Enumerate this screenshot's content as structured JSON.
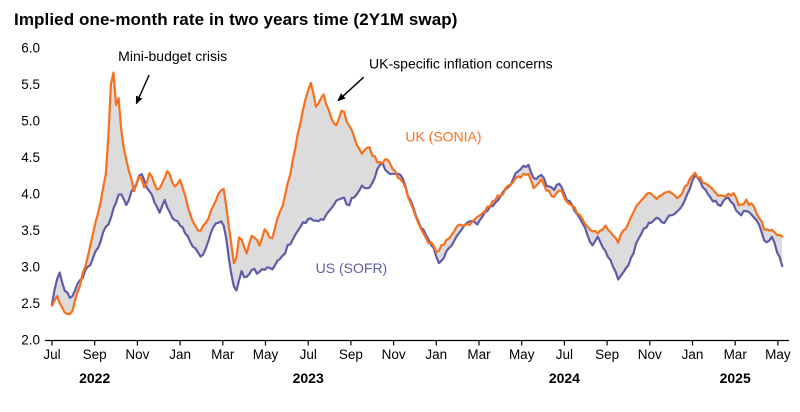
{
  "chart_data": {
    "type": "line",
    "title": "Implied one-month rate in two years time (2Y1M swap)",
    "x_unit": "months since Jul 2022",
    "ylim": [
      2.0,
      6.0
    ],
    "y_ticks": [
      2.0,
      2.5,
      3.0,
      3.5,
      4.0,
      4.5,
      5.0,
      5.5,
      6.0
    ],
    "x_ticks": [
      {
        "t": 0,
        "label": "Jul"
      },
      {
        "t": 2,
        "label": "Sep"
      },
      {
        "t": 4,
        "label": "Nov"
      },
      {
        "t": 6,
        "label": "Jan"
      },
      {
        "t": 8,
        "label": "Mar"
      },
      {
        "t": 10,
        "label": "May"
      },
      {
        "t": 12,
        "label": "Jul"
      },
      {
        "t": 14,
        "label": "Sep"
      },
      {
        "t": 16,
        "label": "Nov"
      },
      {
        "t": 18,
        "label": "Jan"
      },
      {
        "t": 20,
        "label": "Mar"
      },
      {
        "t": 22,
        "label": "May"
      },
      {
        "t": 24,
        "label": "Jul"
      },
      {
        "t": 26,
        "label": "Sep"
      },
      {
        "t": 28,
        "label": "Nov"
      },
      {
        "t": 30,
        "label": "Jan"
      },
      {
        "t": 32,
        "label": "Mar"
      },
      {
        "t": 34,
        "label": "May"
      }
    ],
    "year_labels": [
      {
        "t": 2,
        "label": "2022"
      },
      {
        "t": 12,
        "label": "2023"
      },
      {
        "t": 24,
        "label": "2024"
      },
      {
        "t": 32,
        "label": "2025"
      }
    ],
    "grid": false,
    "legend_position": "inline-labels",
    "fill_between_color": "#DCDCDC",
    "axis_color": "#000000",
    "series": [
      {
        "name": "UK (SONIA)",
        "color": "#F8701D",
        "label_t": 16.55,
        "label_v": 4.72,
        "points": [
          [
            0,
            2.45
          ],
          [
            0.25,
            2.6
          ],
          [
            0.55,
            2.42
          ],
          [
            0.85,
            2.33
          ],
          [
            1.15,
            2.6
          ],
          [
            1.5,
            2.95
          ],
          [
            1.8,
            3.3
          ],
          [
            2.05,
            3.6
          ],
          [
            2.3,
            3.95
          ],
          [
            2.55,
            4.3
          ],
          [
            2.75,
            5.45
          ],
          [
            2.85,
            5.78
          ],
          [
            3.0,
            5.2
          ],
          [
            3.1,
            5.35
          ],
          [
            3.25,
            4.85
          ],
          [
            3.45,
            4.5
          ],
          [
            3.65,
            4.25
          ],
          [
            3.85,
            4.05
          ],
          [
            4.1,
            4.25
          ],
          [
            4.35,
            4.1
          ],
          [
            4.6,
            4.3
          ],
          [
            4.9,
            4.05
          ],
          [
            5.2,
            4.15
          ],
          [
            5.45,
            4.35
          ],
          [
            5.7,
            4.1
          ],
          [
            6.0,
            4.2
          ],
          [
            6.3,
            3.9
          ],
          [
            6.6,
            3.6
          ],
          [
            6.9,
            3.45
          ],
          [
            7.2,
            3.6
          ],
          [
            7.5,
            3.8
          ],
          [
            7.8,
            4.0
          ],
          [
            8.05,
            4.1
          ],
          [
            8.3,
            3.5
          ],
          [
            8.55,
            3.0
          ],
          [
            8.8,
            3.45
          ],
          [
            9.1,
            3.2
          ],
          [
            9.4,
            3.45
          ],
          [
            9.7,
            3.3
          ],
          [
            10.0,
            3.55
          ],
          [
            10.3,
            3.35
          ],
          [
            10.6,
            3.7
          ],
          [
            10.9,
            3.95
          ],
          [
            11.2,
            4.35
          ],
          [
            11.5,
            4.8
          ],
          [
            11.8,
            5.2
          ],
          [
            12.1,
            5.55
          ],
          [
            12.4,
            5.15
          ],
          [
            12.7,
            5.4
          ],
          [
            13.0,
            5.1
          ],
          [
            13.3,
            4.9
          ],
          [
            13.6,
            5.15
          ],
          [
            13.9,
            4.95
          ],
          [
            14.2,
            4.75
          ],
          [
            14.5,
            4.55
          ],
          [
            14.8,
            4.65
          ],
          [
            15.1,
            4.5
          ],
          [
            15.4,
            4.4
          ],
          [
            15.7,
            4.5
          ],
          [
            16.0,
            4.35
          ],
          [
            16.3,
            4.2
          ],
          [
            16.6,
            4.05
          ],
          [
            16.9,
            3.8
          ],
          [
            17.2,
            3.6
          ],
          [
            17.5,
            3.4
          ],
          [
            17.8,
            3.3
          ],
          [
            18.1,
            3.2
          ],
          [
            18.4,
            3.35
          ],
          [
            18.7,
            3.45
          ],
          [
            19.0,
            3.55
          ],
          [
            19.3,
            3.6
          ],
          [
            19.6,
            3.55
          ],
          [
            19.9,
            3.7
          ],
          [
            20.2,
            3.75
          ],
          [
            20.5,
            3.85
          ],
          [
            20.8,
            3.95
          ],
          [
            21.1,
            4.0
          ],
          [
            21.4,
            4.1
          ],
          [
            21.7,
            4.2
          ],
          [
            22.0,
            4.25
          ],
          [
            22.3,
            4.3
          ],
          [
            22.6,
            4.05
          ],
          [
            22.9,
            4.2
          ],
          [
            23.2,
            4.05
          ],
          [
            23.5,
            3.95
          ],
          [
            23.8,
            4.05
          ],
          [
            24.1,
            3.9
          ],
          [
            24.4,
            3.85
          ],
          [
            24.7,
            3.7
          ],
          [
            25.0,
            3.6
          ],
          [
            25.3,
            3.5
          ],
          [
            25.6,
            3.45
          ],
          [
            25.9,
            3.55
          ],
          [
            26.2,
            3.45
          ],
          [
            26.5,
            3.35
          ],
          [
            26.8,
            3.5
          ],
          [
            27.1,
            3.65
          ],
          [
            27.4,
            3.85
          ],
          [
            27.7,
            3.95
          ],
          [
            28.0,
            4.05
          ],
          [
            28.3,
            3.9
          ],
          [
            28.6,
            4.0
          ],
          [
            28.9,
            4.05
          ],
          [
            29.2,
            3.95
          ],
          [
            29.5,
            4.0
          ],
          [
            29.8,
            4.15
          ],
          [
            30.1,
            4.3
          ],
          [
            30.4,
            4.2
          ],
          [
            30.7,
            4.1
          ],
          [
            31.0,
            4.05
          ],
          [
            31.3,
            3.95
          ],
          [
            31.6,
            4.0
          ],
          [
            31.9,
            4.0
          ],
          [
            32.2,
            3.85
          ],
          [
            32.5,
            3.9
          ],
          [
            32.8,
            3.85
          ],
          [
            33.1,
            3.7
          ],
          [
            33.4,
            3.5
          ],
          [
            33.7,
            3.5
          ],
          [
            34.0,
            3.45
          ],
          [
            34.2,
            3.4
          ]
        ]
      },
      {
        "name": "US (SOFR)",
        "color": "#605CA8",
        "label_t": 12.35,
        "label_v": 2.92,
        "points": [
          [
            0,
            2.5
          ],
          [
            0.3,
            2.95
          ],
          [
            0.6,
            2.7
          ],
          [
            0.9,
            2.55
          ],
          [
            1.2,
            2.75
          ],
          [
            1.5,
            2.9
          ],
          [
            1.8,
            3.05
          ],
          [
            2.1,
            3.25
          ],
          [
            2.4,
            3.45
          ],
          [
            2.7,
            3.65
          ],
          [
            3.0,
            3.9
          ],
          [
            3.2,
            4.05
          ],
          [
            3.45,
            3.85
          ],
          [
            3.7,
            4.0
          ],
          [
            3.95,
            4.15
          ],
          [
            4.2,
            4.3
          ],
          [
            4.45,
            4.1
          ],
          [
            4.7,
            3.95
          ],
          [
            5.0,
            3.75
          ],
          [
            5.3,
            3.9
          ],
          [
            5.6,
            3.7
          ],
          [
            5.9,
            3.6
          ],
          [
            6.2,
            3.5
          ],
          [
            6.5,
            3.35
          ],
          [
            6.8,
            3.2
          ],
          [
            7.0,
            3.1
          ],
          [
            7.3,
            3.35
          ],
          [
            7.6,
            3.6
          ],
          [
            7.9,
            3.65
          ],
          [
            8.1,
            3.5
          ],
          [
            8.35,
            2.95
          ],
          [
            8.6,
            2.65
          ],
          [
            8.85,
            2.95
          ],
          [
            9.1,
            2.85
          ],
          [
            9.4,
            3.0
          ],
          [
            9.7,
            2.9
          ],
          [
            10.0,
            3.0
          ],
          [
            10.3,
            2.95
          ],
          [
            10.6,
            3.1
          ],
          [
            10.9,
            3.2
          ],
          [
            11.2,
            3.35
          ],
          [
            11.5,
            3.5
          ],
          [
            11.8,
            3.6
          ],
          [
            12.1,
            3.7
          ],
          [
            12.4,
            3.6
          ],
          [
            12.7,
            3.65
          ],
          [
            13.0,
            3.8
          ],
          [
            13.3,
            3.9
          ],
          [
            13.6,
            3.95
          ],
          [
            13.9,
            3.85
          ],
          [
            14.2,
            4.0
          ],
          [
            14.5,
            4.1
          ],
          [
            14.8,
            4.05
          ],
          [
            15.1,
            4.2
          ],
          [
            15.4,
            4.45
          ],
          [
            15.7,
            4.3
          ],
          [
            16.0,
            4.25
          ],
          [
            16.3,
            4.3
          ],
          [
            16.6,
            4.05
          ],
          [
            16.9,
            3.85
          ],
          [
            17.2,
            3.6
          ],
          [
            17.5,
            3.45
          ],
          [
            17.8,
            3.3
          ],
          [
            18.1,
            3.05
          ],
          [
            18.4,
            3.15
          ],
          [
            18.7,
            3.3
          ],
          [
            19.0,
            3.45
          ],
          [
            19.3,
            3.55
          ],
          [
            19.6,
            3.65
          ],
          [
            19.9,
            3.6
          ],
          [
            20.2,
            3.7
          ],
          [
            20.5,
            3.8
          ],
          [
            20.8,
            3.9
          ],
          [
            21.1,
            4.0
          ],
          [
            21.4,
            4.1
          ],
          [
            21.7,
            4.25
          ],
          [
            22.0,
            4.35
          ],
          [
            22.3,
            4.4
          ],
          [
            22.6,
            4.2
          ],
          [
            22.9,
            4.3
          ],
          [
            23.2,
            4.1
          ],
          [
            23.5,
            4.05
          ],
          [
            23.8,
            4.15
          ],
          [
            24.1,
            3.95
          ],
          [
            24.4,
            3.8
          ],
          [
            24.7,
            3.65
          ],
          [
            25.0,
            3.5
          ],
          [
            25.3,
            3.3
          ],
          [
            25.6,
            3.4
          ],
          [
            25.9,
            3.2
          ],
          [
            26.2,
            3.05
          ],
          [
            26.5,
            2.85
          ],
          [
            26.8,
            2.95
          ],
          [
            27.1,
            3.1
          ],
          [
            27.4,
            3.35
          ],
          [
            27.7,
            3.5
          ],
          [
            28.0,
            3.6
          ],
          [
            28.3,
            3.7
          ],
          [
            28.6,
            3.6
          ],
          [
            28.9,
            3.7
          ],
          [
            29.2,
            3.75
          ],
          [
            29.5,
            3.85
          ],
          [
            29.8,
            4.0
          ],
          [
            30.1,
            4.25
          ],
          [
            30.4,
            4.15
          ],
          [
            30.7,
            4.0
          ],
          [
            31.0,
            3.9
          ],
          [
            31.3,
            3.85
          ],
          [
            31.6,
            3.95
          ],
          [
            31.9,
            3.85
          ],
          [
            32.2,
            3.7
          ],
          [
            32.5,
            3.8
          ],
          [
            32.8,
            3.7
          ],
          [
            33.1,
            3.6
          ],
          [
            33.4,
            3.35
          ],
          [
            33.7,
            3.4
          ],
          [
            34.0,
            3.2
          ],
          [
            34.2,
            3.0
          ]
        ]
      }
    ],
    "annotations": [
      {
        "text": "Mini-budget crisis",
        "text_t": 3.1,
        "text_v": 5.82,
        "arrow_from_t": 4.55,
        "arrow_from_v": 5.63,
        "arrow_to_t": 3.95,
        "arrow_to_v": 5.24
      },
      {
        "text": "UK-specific inflation concerns",
        "text_t": 14.85,
        "text_v": 5.72,
        "arrow_from_t": 14.6,
        "arrow_from_v": 5.6,
        "arrow_to_t": 13.4,
        "arrow_to_v": 5.28
      }
    ]
  }
}
